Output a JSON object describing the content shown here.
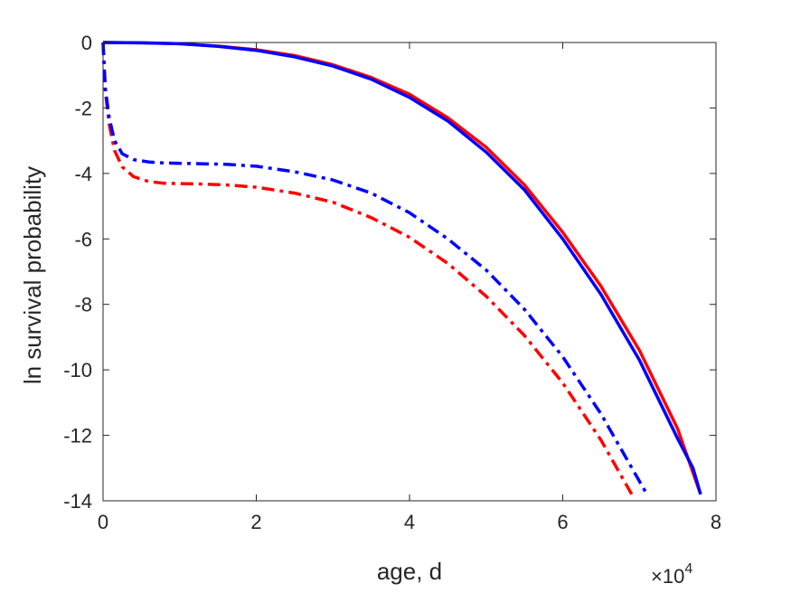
{
  "chart_data": {
    "type": "line",
    "xlabel": "age, d",
    "ylabel": "ln survival probability",
    "x_exponent_label": "×10",
    "x_exponent_power": "4",
    "xlim": [
      0,
      80000
    ],
    "ylim": [
      -14,
      0
    ],
    "x_ticks": [
      0,
      20000,
      40000,
      60000,
      80000
    ],
    "x_tick_labels": [
      "0",
      "2",
      "4",
      "6",
      "8"
    ],
    "y_ticks": [
      0,
      -2,
      -4,
      -6,
      -8,
      -10,
      -12,
      -14
    ],
    "y_tick_labels": [
      "0",
      "-2",
      "-4",
      "-6",
      "-8",
      "-10",
      "-12",
      "-14"
    ],
    "grid": false,
    "series": [
      {
        "color": "#ff0000",
        "style": "solid",
        "x": [
          0,
          5000,
          10000,
          15000,
          20000,
          25000,
          30000,
          35000,
          40000,
          45000,
          50000,
          55000,
          60000,
          65000,
          70000,
          75000,
          78000
        ],
        "y": [
          0,
          -0.01,
          -0.04,
          -0.11,
          -0.22,
          -0.4,
          -0.68,
          -1.07,
          -1.58,
          -2.3,
          -3.2,
          -4.35,
          -5.8,
          -7.45,
          -9.4,
          -11.8,
          -13.8
        ]
      },
      {
        "color": "#0000ff",
        "style": "solid",
        "x": [
          0,
          5000,
          10000,
          15000,
          20000,
          25000,
          30000,
          35000,
          40000,
          45000,
          50000,
          55000,
          60000,
          65000,
          70000,
          75000,
          77000,
          78000
        ],
        "y": [
          0,
          -0.01,
          -0.04,
          -0.12,
          -0.24,
          -0.44,
          -0.72,
          -1.12,
          -1.68,
          -2.4,
          -3.35,
          -4.5,
          -6.0,
          -7.7,
          -9.7,
          -12.1,
          -13.0,
          -13.8
        ]
      },
      {
        "color": "#ff0000",
        "style": "dashdot",
        "x": [
          0,
          300,
          800,
          1500,
          2500,
          4000,
          6000,
          8000,
          12000,
          16000,
          20000,
          25000,
          30000,
          35000,
          40000,
          45000,
          50000,
          55000,
          60000,
          65000,
          69000
        ],
        "y": [
          0,
          -1.5,
          -2.5,
          -3.3,
          -3.8,
          -4.1,
          -4.25,
          -4.3,
          -4.32,
          -4.35,
          -4.42,
          -4.6,
          -4.88,
          -5.35,
          -5.95,
          -6.75,
          -7.75,
          -8.95,
          -10.4,
          -12.15,
          -13.8
        ]
      },
      {
        "color": "#0000ff",
        "style": "dashdot",
        "x": [
          0,
          300,
          800,
          1500,
          2500,
          4000,
          6000,
          8000,
          12000,
          16000,
          20000,
          25000,
          30000,
          35000,
          40000,
          45000,
          50000,
          55000,
          60000,
          65000,
          70000,
          71000
        ],
        "y": [
          0,
          -1.4,
          -2.3,
          -3.0,
          -3.4,
          -3.58,
          -3.65,
          -3.68,
          -3.7,
          -3.72,
          -3.78,
          -3.95,
          -4.2,
          -4.6,
          -5.2,
          -6.0,
          -6.95,
          -8.15,
          -9.6,
          -11.35,
          -13.4,
          -13.8
        ]
      }
    ]
  }
}
